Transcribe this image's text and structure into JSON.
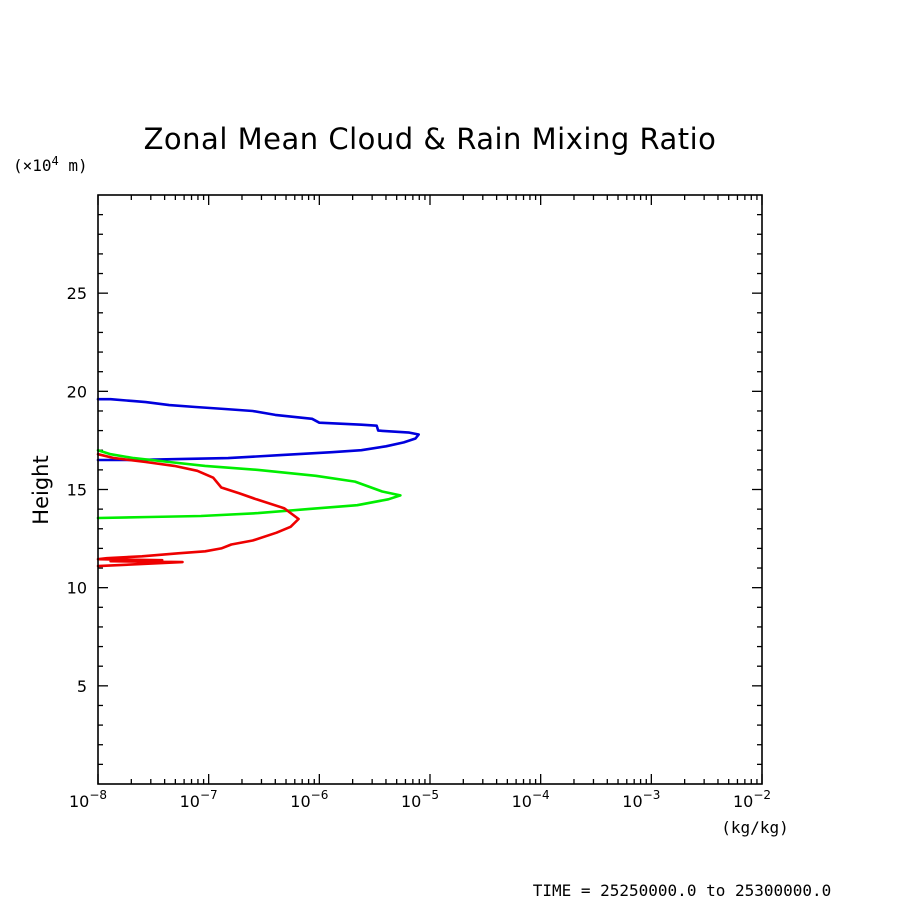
{
  "chart_data": {
    "type": "line",
    "title": "Zonal Mean Cloud & Rain Mixing Ratio",
    "ylabel": "Height",
    "y_unit_label": "(×10",
    "y_unit_exp": "4",
    "y_unit_tail": " m)",
    "x_unit_label": "(kg/kg)",
    "footer": "TIME = 25250000.0 to 25300000.0",
    "x_scale": "log",
    "xlim": [
      1e-08,
      0.01
    ],
    "ylim": [
      0,
      30
    ],
    "x_ticks": [
      {
        "value": 1e-08,
        "base": "10",
        "exp": "−8"
      },
      {
        "value": 1e-07,
        "base": "10",
        "exp": "−7"
      },
      {
        "value": 1e-06,
        "base": "10",
        "exp": "−6"
      },
      {
        "value": 1e-05,
        "base": "10",
        "exp": "−5"
      },
      {
        "value": 0.0001,
        "base": "10",
        "exp": "−4"
      },
      {
        "value": 0.001,
        "base": "10",
        "exp": "−3"
      },
      {
        "value": 0.01,
        "base": "10",
        "exp": "−2"
      }
    ],
    "y_ticks": [
      {
        "value": 5,
        "label": "5"
      },
      {
        "value": 10,
        "label": "10"
      },
      {
        "value": 15,
        "label": "15"
      },
      {
        "value": 20,
        "label": "20"
      },
      {
        "value": 25,
        "label": "25"
      }
    ],
    "grid": false,
    "series": [
      {
        "color": "#0000dd",
        "points": [
          [
            1e-08,
            19.6
          ],
          [
            1.3e-08,
            19.6
          ],
          [
            2.1e-08,
            19.5
          ],
          [
            2.7e-08,
            19.45
          ],
          [
            4.4e-08,
            19.3
          ],
          [
            7.6e-08,
            19.2
          ],
          [
            1.4e-07,
            19.1
          ],
          [
            2.5e-07,
            19.0
          ],
          [
            4e-07,
            18.8
          ],
          [
            8.6e-07,
            18.6
          ],
          [
            1e-06,
            18.4
          ],
          [
            2.4e-06,
            18.3
          ],
          [
            3.3e-06,
            18.25
          ],
          [
            3.4e-06,
            18.0
          ],
          [
            6.5e-06,
            17.9
          ],
          [
            7.9e-06,
            17.8
          ],
          [
            7.4e-06,
            17.6
          ],
          [
            5.8e-06,
            17.4
          ],
          [
            4e-06,
            17.2
          ],
          [
            2.4e-06,
            17.0
          ],
          [
            1.3e-06,
            16.9
          ],
          [
            4.5e-07,
            16.75
          ],
          [
            1.5e-07,
            16.6
          ],
          [
            5.3e-08,
            16.55
          ],
          [
            2e-08,
            16.5
          ],
          [
            1e-08,
            16.5
          ]
        ]
      },
      {
        "color": "#00ee00",
        "points": [
          [
            1e-08,
            17.0
          ],
          [
            1.3e-08,
            16.8
          ],
          [
            2.1e-08,
            16.6
          ],
          [
            4.4e-08,
            16.4
          ],
          [
            9.3e-08,
            16.2
          ],
          [
            2.8e-07,
            16.0
          ],
          [
            9.3e-07,
            15.7
          ],
          [
            2.1e-06,
            15.4
          ],
          [
            3.7e-06,
            14.9
          ],
          [
            5.4e-06,
            14.7
          ],
          [
            4.2e-06,
            14.5
          ],
          [
            2.2e-06,
            14.2
          ],
          [
            7.9e-07,
            14.0
          ],
          [
            2.8e-07,
            13.8
          ],
          [
            8.5e-08,
            13.65
          ],
          [
            2.9e-08,
            13.6
          ],
          [
            1e-08,
            13.55
          ]
        ]
      },
      {
        "color": "#ee0000",
        "points": [
          [
            1e-08,
            16.8
          ],
          [
            1.4e-08,
            16.6
          ],
          [
            2.7e-08,
            16.4
          ],
          [
            4.9e-08,
            16.2
          ],
          [
            7.9e-08,
            15.95
          ],
          [
            1.1e-07,
            15.6
          ],
          [
            1.3e-07,
            15.1
          ],
          [
            1.9e-07,
            14.8
          ],
          [
            2.7e-07,
            14.5
          ],
          [
            4.8e-07,
            14.05
          ],
          [
            6.5e-07,
            13.5
          ],
          [
            5.5e-07,
            13.1
          ],
          [
            4.1e-07,
            12.8
          ],
          [
            2.5e-07,
            12.4
          ],
          [
            1.6e-07,
            12.2
          ],
          [
            1.3e-07,
            12.0
          ],
          [
            9.3e-08,
            11.85
          ],
          [
            5.3e-08,
            11.75
          ],
          [
            2.5e-08,
            11.6
          ],
          [
            1.2e-08,
            11.5
          ],
          [
            1e-08,
            11.45
          ],
          [
            3.8e-08,
            11.4
          ],
          [
            1.3e-08,
            11.35
          ],
          [
            5.8e-08,
            11.3
          ],
          [
            1e-08,
            11.1
          ]
        ]
      }
    ]
  }
}
